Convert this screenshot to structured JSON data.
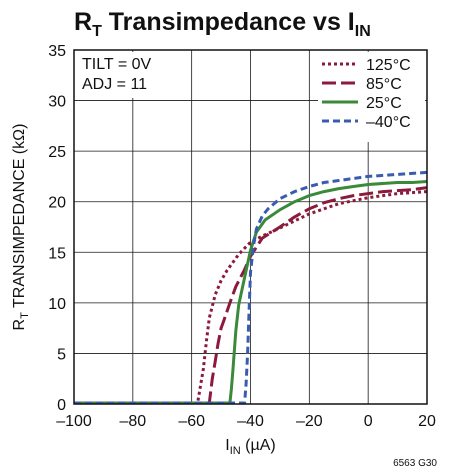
{
  "chart_data": {
    "type": "line",
    "title": {
      "main": "R",
      "main_sub": "T",
      "rest": " Transimpedance vs I",
      "rest_sub": "IN"
    },
    "xlabel": {
      "main": "I",
      "sub": "IN",
      "rest": " (µA)"
    },
    "ylabel": {
      "main": "R",
      "sub": "T",
      "rest": " TRANSIMPEDANCE (kΩ)"
    },
    "xlim": [
      -100,
      20
    ],
    "ylim": [
      0,
      35
    ],
    "xticks": [
      -100,
      -80,
      -60,
      -40,
      -20,
      0,
      20
    ],
    "xtick_labels": [
      "–100",
      "–80",
      "–60",
      "–40",
      "–20",
      "0",
      "20"
    ],
    "yticks": [
      0,
      5,
      10,
      15,
      20,
      25,
      30,
      35
    ],
    "ytick_labels": [
      "0",
      "5",
      "10",
      "15",
      "20",
      "25",
      "30",
      "35"
    ],
    "grid": true,
    "legend_position": "top-right",
    "annotations": [
      "TILT = 0V",
      "ADJ = 11"
    ],
    "figure_code": "6563 G30",
    "series": [
      {
        "name": "125°C",
        "color": "#8b1a3c",
        "style": "dotted",
        "x": [
          -100,
          -58,
          -56,
          -55,
          -54,
          -52,
          -50,
          -48,
          -44,
          -40,
          -36,
          -30,
          -25,
          -20,
          -15,
          -10,
          -5,
          0,
          5,
          10,
          15,
          20
        ],
        "y": [
          0.1,
          0.1,
          3.5,
          6.2,
          8.5,
          10.8,
          12.2,
          13.2,
          14.8,
          16.0,
          16.6,
          17.4,
          18.1,
          18.8,
          19.3,
          19.8,
          20.1,
          20.4,
          20.6,
          20.8,
          20.9,
          21.0
        ]
      },
      {
        "name": "85°C",
        "color": "#8b1a3c",
        "style": "longdash",
        "x": [
          -100,
          -54,
          -53,
          -52,
          -51,
          -50,
          -49,
          -47,
          -45,
          -42,
          -40,
          -36,
          -30,
          -25,
          -20,
          -15,
          -10,
          -5,
          0,
          5,
          10,
          15,
          20
        ],
        "y": [
          0.1,
          0.1,
          2.5,
          4.2,
          6.0,
          7.5,
          8.3,
          10.0,
          11.6,
          13.3,
          14.6,
          16.4,
          17.5,
          18.5,
          19.3,
          19.9,
          20.3,
          20.6,
          20.8,
          21.0,
          21.1,
          21.2,
          21.4
        ]
      },
      {
        "name": "25°C",
        "color": "#3a8a3a",
        "style": "solid",
        "x": [
          -100,
          -47,
          -46.5,
          -46,
          -45.5,
          -45,
          -44,
          -42,
          -40,
          -38,
          -35,
          -30,
          -25,
          -20,
          -15,
          -10,
          -5,
          0,
          5,
          10,
          15,
          20
        ],
        "y": [
          0.1,
          0.1,
          1.5,
          3.2,
          5.2,
          7.2,
          9.8,
          12.5,
          15.2,
          17.0,
          18.2,
          19.2,
          20.0,
          20.6,
          21.0,
          21.3,
          21.5,
          21.7,
          21.8,
          21.9,
          21.9,
          22.0
        ]
      },
      {
        "name": "–40°C",
        "color": "#3a5cb0",
        "style": "dashed",
        "x": [
          -100,
          -42,
          -41.5,
          -41,
          -40.5,
          -40,
          -39,
          -38,
          -36,
          -34,
          -30,
          -25,
          -20,
          -15,
          -10,
          -5,
          0,
          5,
          10,
          15,
          20
        ],
        "y": [
          0.1,
          0.1,
          2.0,
          5.0,
          9.0,
          13.0,
          15.6,
          17.3,
          18.6,
          19.3,
          20.3,
          21.0,
          21.5,
          21.9,
          22.1,
          22.3,
          22.5,
          22.6,
          22.7,
          22.8,
          22.9
        ]
      }
    ]
  }
}
